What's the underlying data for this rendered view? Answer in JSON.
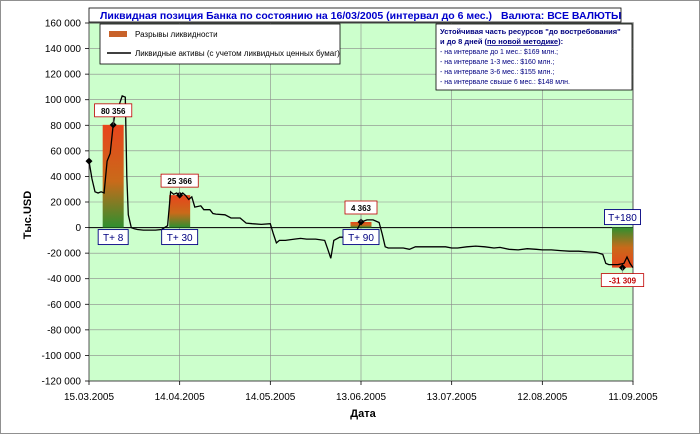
{
  "chart_data": {
    "type": "line",
    "title": "Ликвидная позиция Банка по состоянию на 16/03/2005 (интервал до 6 мес.)",
    "currency_label": "Валюта: ВСЕ ВАЛЮТЫ",
    "ylabel": "Тыс.USD",
    "xlabel": "Дата",
    "ylim": [
      -120000,
      160000
    ],
    "y_ticks": [
      -120000,
      -100000,
      -80000,
      -60000,
      -40000,
      -20000,
      0,
      20000,
      40000,
      60000,
      80000,
      100000,
      120000,
      140000,
      160000
    ],
    "y_tick_labels": [
      "-120 000",
      "-100 000",
      "-80 000",
      "-60 000",
      "-40 000",
      "-20 000",
      "0",
      "20 000",
      "40 000",
      "60 000",
      "80 000",
      "100 000",
      "120 000",
      "140 000",
      "160 000"
    ],
    "x_range": [
      0,
      180
    ],
    "x_ticks": [
      0,
      30,
      60,
      90,
      120,
      150,
      180
    ],
    "x_tick_labels": [
      "15.03.2005",
      "14.04.2005",
      "14.05.2005",
      "13.06.2005",
      "13.07.2005",
      "12.08.2005",
      "11.09.2005"
    ],
    "grid": true,
    "plot_background": "#ccffcc",
    "legend": {
      "position": "top-left",
      "items": [
        {
          "label": "Разрывы ликвидности",
          "color": "#c8622a",
          "kind": "bar"
        },
        {
          "label": "Ликвидные активы (с учетом ликвидных ценных бумаг)",
          "color": "#000000",
          "kind": "line"
        }
      ]
    },
    "info_box": {
      "heading": "Устойчивая часть ресурсов \"до востребования\"",
      "heading2_prefix": "и до 8 дней (",
      "heading2_link": "по новой методике",
      "heading2_suffix": "):",
      "lines": [
        "- на интервале до 1 мес.: $169 млн.;",
        "- на интервале 1-3 мес.: $160 млн.;",
        "- на интервале 3-6 мес.: $155 млн.;",
        "- на интервале свыше 6 мес.: $148 млн."
      ]
    },
    "gap_bars": [
      {
        "label": "T+ 8",
        "day": 8,
        "value": 80356,
        "value_label": "80 356"
      },
      {
        "label": "T+ 30",
        "day": 30,
        "value": 25366,
        "value_label": "25 366"
      },
      {
        "label": "T+ 90",
        "day": 90,
        "value": 4363,
        "value_label": "4 363"
      },
      {
        "label": "T+180",
        "day": 180,
        "value": -31309,
        "value_label": "-31 309"
      }
    ],
    "series": [
      {
        "name": "Ликвидные активы (с учетом ликвидных ценных бумаг)",
        "color": "#000000",
        "points": [
          [
            0,
            52000
          ],
          [
            1,
            38000
          ],
          [
            2,
            28000
          ],
          [
            3,
            27000
          ],
          [
            4,
            28000
          ],
          [
            5,
            27000
          ],
          [
            6,
            52000
          ],
          [
            7,
            58000
          ],
          [
            8,
            80356
          ],
          [
            9,
            95000
          ],
          [
            10,
            96000
          ],
          [
            11,
            103000
          ],
          [
            12,
            102000
          ],
          [
            12.5,
            40000
          ],
          [
            13,
            10000
          ],
          [
            14,
            0
          ],
          [
            15,
            -1000
          ],
          [
            16,
            -1500
          ],
          [
            18,
            -2000
          ],
          [
            20,
            -2000
          ],
          [
            22,
            -2000
          ],
          [
            24,
            -1500
          ],
          [
            25,
            0
          ],
          [
            26,
            1500
          ],
          [
            27,
            28000
          ],
          [
            28,
            26000
          ],
          [
            29,
            27000
          ],
          [
            30,
            25366
          ],
          [
            31,
            27000
          ],
          [
            32,
            25000
          ],
          [
            33,
            22000
          ],
          [
            34,
            24000
          ],
          [
            35,
            16000
          ],
          [
            37,
            17000
          ],
          [
            38,
            14000
          ],
          [
            40,
            14000
          ],
          [
            41,
            11000
          ],
          [
            42,
            10500
          ],
          [
            45,
            10000
          ],
          [
            47,
            7500
          ],
          [
            50,
            7500
          ],
          [
            52,
            3500
          ],
          [
            54,
            3000
          ],
          [
            57,
            2500
          ],
          [
            60,
            3000
          ],
          [
            61,
            -5000
          ],
          [
            62,
            -12000
          ],
          [
            63,
            -10000
          ],
          [
            65,
            -10000
          ],
          [
            68,
            -9000
          ],
          [
            70,
            -8500
          ],
          [
            72,
            -9000
          ],
          [
            75,
            -9000
          ],
          [
            78,
            -10000
          ],
          [
            79,
            -17000
          ],
          [
            80,
            -24000
          ],
          [
            81,
            -10000
          ],
          [
            83,
            -7500
          ],
          [
            86,
            -7500
          ],
          [
            88,
            -5000
          ],
          [
            90,
            4363
          ],
          [
            92,
            6000
          ],
          [
            94,
            6000
          ],
          [
            96,
            4000
          ],
          [
            97,
            -5000
          ],
          [
            98,
            -15000
          ],
          [
            99,
            -16000
          ],
          [
            101,
            -16000
          ],
          [
            104,
            -16000
          ],
          [
            106,
            -17000
          ],
          [
            108,
            -15000
          ],
          [
            110,
            -15000
          ],
          [
            112,
            -15000
          ],
          [
            115,
            -15000
          ],
          [
            118,
            -15000
          ],
          [
            120,
            -16000
          ],
          [
            122,
            -16000
          ],
          [
            125,
            -15000
          ],
          [
            128,
            -14500
          ],
          [
            131,
            -15000
          ],
          [
            134,
            -16000
          ],
          [
            136,
            -15500
          ],
          [
            139,
            -17000
          ],
          [
            142,
            -17500
          ],
          [
            145,
            -16500
          ],
          [
            148,
            -17000
          ],
          [
            150,
            -17500
          ],
          [
            153,
            -17500
          ],
          [
            156,
            -18000
          ],
          [
            159,
            -18500
          ],
          [
            162,
            -18500
          ],
          [
            165,
            -19000
          ],
          [
            168,
            -19500
          ],
          [
            170,
            -21000
          ],
          [
            171,
            -28000
          ],
          [
            172,
            -29000
          ],
          [
            175,
            -29000
          ],
          [
            177,
            -28000
          ],
          [
            178,
            -23000
          ],
          [
            179,
            -28000
          ],
          [
            180,
            -31309
          ]
        ]
      }
    ]
  }
}
